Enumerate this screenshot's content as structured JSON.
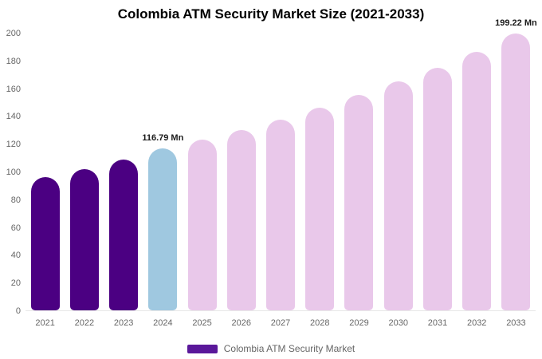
{
  "title": "Colombia ATM Security Market Size (2021-2033)",
  "legend": {
    "label": "Colombia ATM Security Market",
    "swatch_color": "#5a189a"
  },
  "chart_data": {
    "type": "bar",
    "title": "Colombia ATM Security Market Size (2021-2033)",
    "categories": [
      "2021",
      "2022",
      "2023",
      "2024",
      "2025",
      "2026",
      "2027",
      "2028",
      "2029",
      "2030",
      "2031",
      "2032",
      "2033"
    ],
    "values": [
      96,
      102,
      108.5,
      116.79,
      123,
      130,
      137.5,
      146,
      155,
      165,
      175,
      186,
      199.22
    ],
    "xlabel": "",
    "ylabel": "",
    "ylim": [
      0,
      200
    ],
    "yticks": [
      0,
      20,
      40,
      60,
      80,
      100,
      120,
      140,
      160,
      180,
      200
    ],
    "grid": false,
    "legend_position": "bottom",
    "colors": {
      "historical": "#4B0082",
      "highlight": "#9fc8e0",
      "forecast": "#e9c8ea"
    },
    "bar_color_keys": [
      "historical",
      "historical",
      "historical",
      "highlight",
      "forecast",
      "forecast",
      "forecast",
      "forecast",
      "forecast",
      "forecast",
      "forecast",
      "forecast",
      "forecast"
    ],
    "annotations": [
      {
        "category": "2024",
        "text": "116.79 Mn"
      },
      {
        "category": "2033",
        "text": "199.22 Mn"
      }
    ]
  }
}
